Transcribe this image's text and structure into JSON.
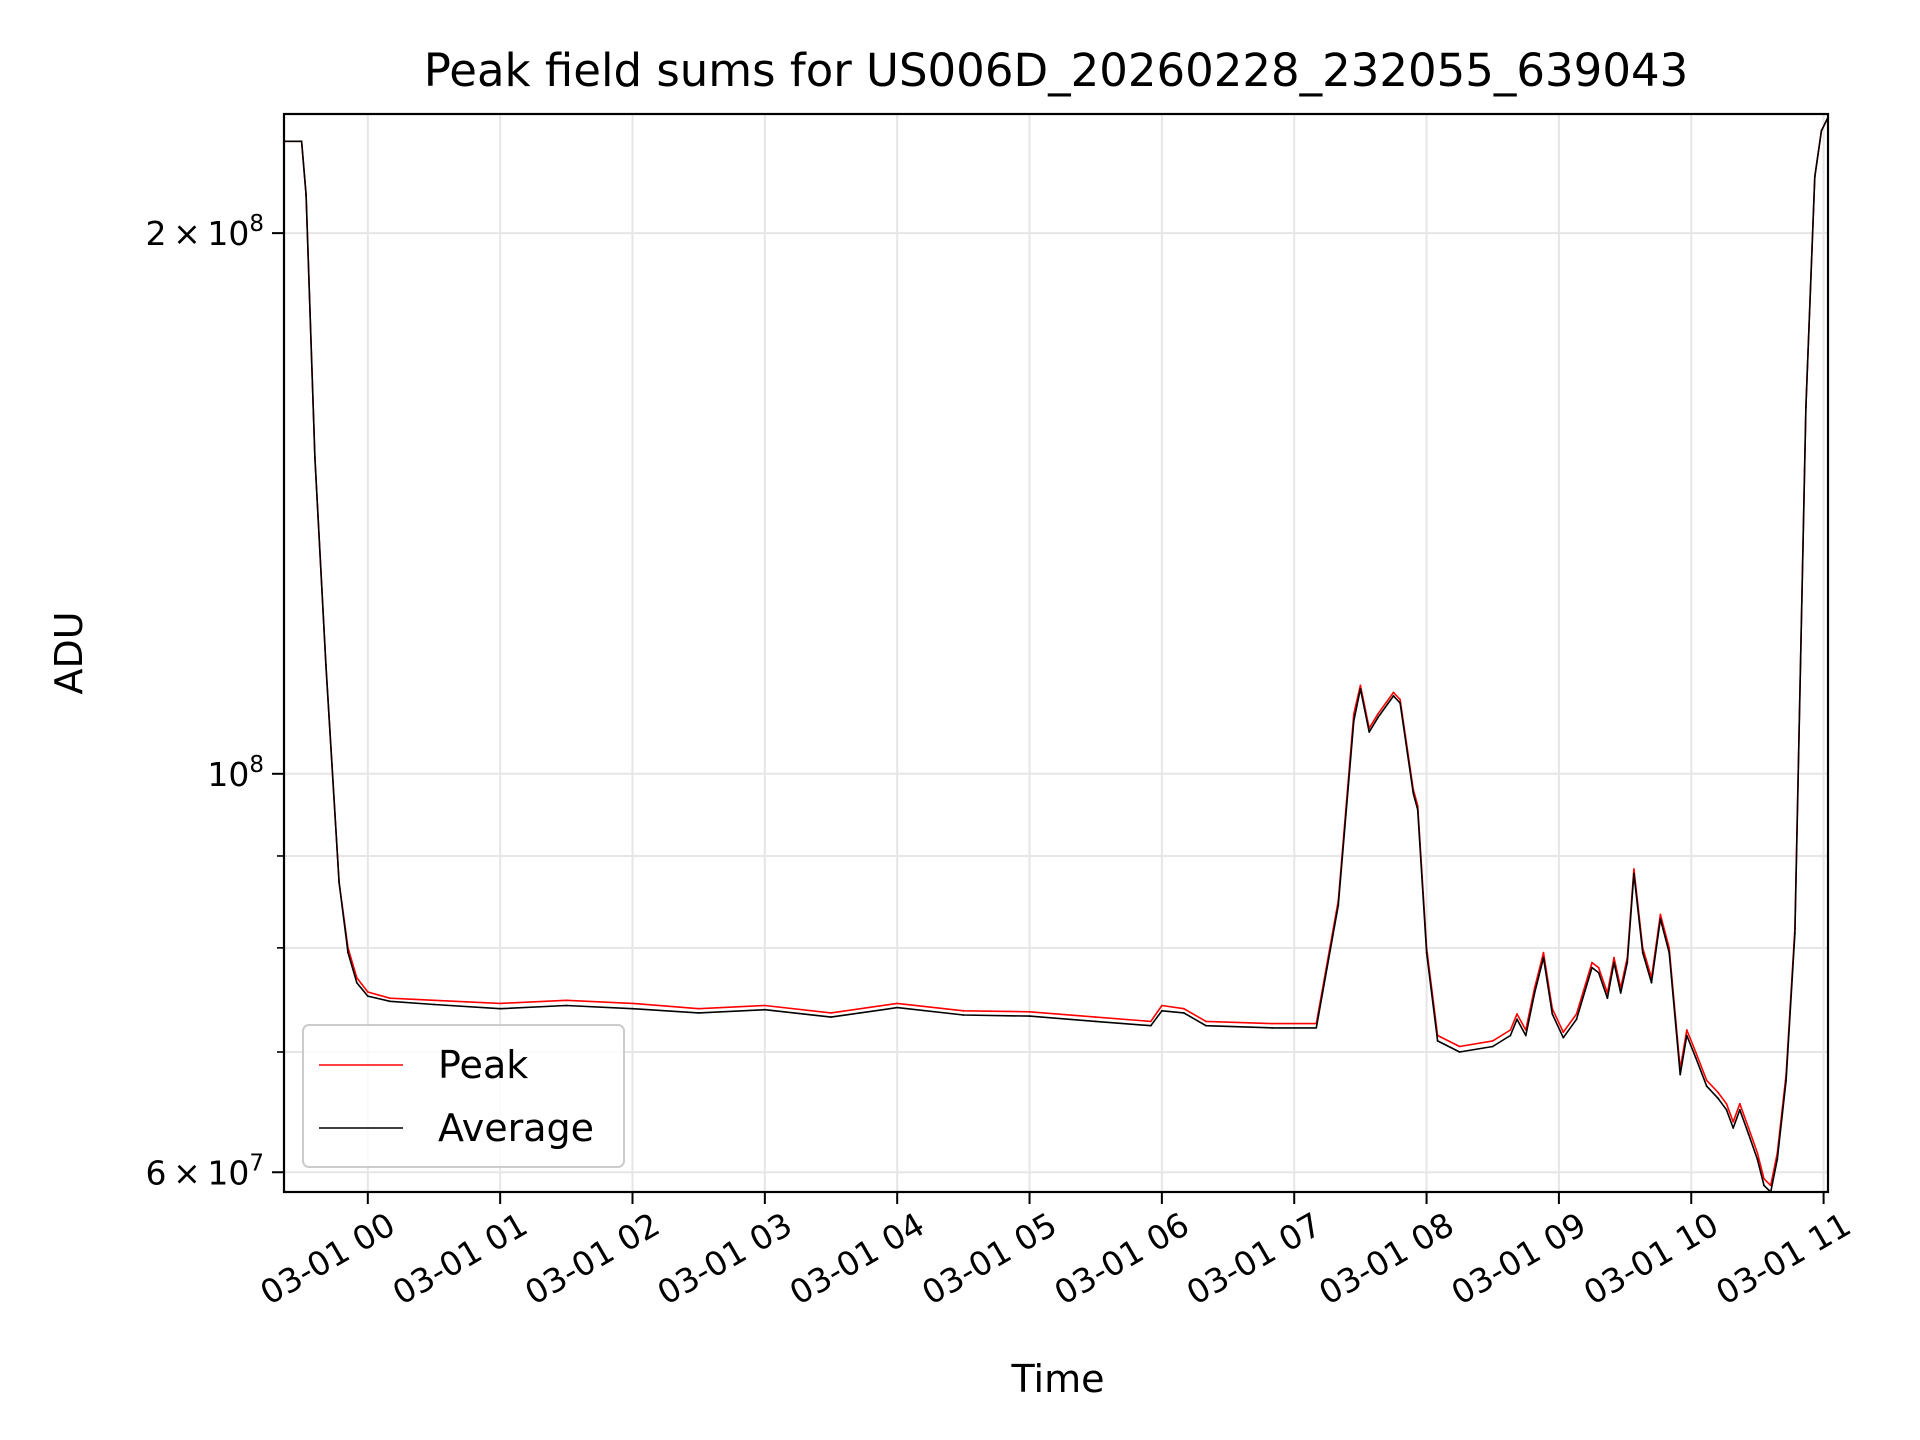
{
  "chart_data": {
    "type": "line",
    "title": "Peak field sums for US006D_20260228_232055_639043",
    "xlabel": "Time",
    "ylabel": "ADU",
    "y_scale": "log",
    "ylim": [
      58500000,
      233000000
    ],
    "x_range": [
      "02-28 23:22",
      "03-01 11:02"
    ],
    "grid": true,
    "legend_position": "lower-left",
    "x_ticks": [
      "03-01 00",
      "03-01 01",
      "03-01 02",
      "03-01 03",
      "03-01 04",
      "03-01 05",
      "03-01 06",
      "03-01 07",
      "03-01 08",
      "03-01 09",
      "03-01 10",
      "03-01 11"
    ],
    "y_tick_labels": [
      {
        "value": 60000000,
        "mantissa": "6",
        "exponent": "7"
      },
      {
        "value": 100000000,
        "mantissa": "",
        "exponent": "8"
      },
      {
        "value": 200000000,
        "mantissa": "2",
        "exponent": "8"
      }
    ],
    "y_minor_ticks": [
      70000000,
      80000000,
      90000000
    ],
    "colors": {
      "peak": "#ff0000",
      "average": "#000000",
      "grid": "#e6e6e6"
    },
    "series": [
      {
        "name": "Peak",
        "color": "#ff0000",
        "points": [
          [
            "02-28 23:22",
            225000000
          ],
          [
            "02-28 23:30",
            225000000
          ],
          [
            "02-28 23:32",
            210000000
          ],
          [
            "02-28 23:36",
            150000000
          ],
          [
            "02-28 23:41",
            115000000
          ],
          [
            "02-28 23:47",
            87000000
          ],
          [
            "02-28 23:51",
            80000000
          ],
          [
            "02-28 23:55",
            77000000
          ],
          [
            "03-01 00:00",
            75600000
          ],
          [
            "03-01 00:10",
            75000000
          ],
          [
            "03-01 00:30",
            74800000
          ],
          [
            "03-01 01:00",
            74500000
          ],
          [
            "03-01 01:30",
            74800000
          ],
          [
            "03-01 02:00",
            74500000
          ],
          [
            "03-01 02:30",
            74000000
          ],
          [
            "03-01 03:00",
            74300000
          ],
          [
            "03-01 03:30",
            73600000
          ],
          [
            "03-01 04:00",
            74500000
          ],
          [
            "03-01 04:30",
            73800000
          ],
          [
            "03-01 05:00",
            73700000
          ],
          [
            "03-01 05:30",
            73200000
          ],
          [
            "03-01 05:55",
            72800000
          ],
          [
            "03-01 06:00",
            74300000
          ],
          [
            "03-01 06:10",
            74000000
          ],
          [
            "03-01 06:20",
            72800000
          ],
          [
            "03-01 06:50",
            72600000
          ],
          [
            "03-01 07:10",
            72600000
          ],
          [
            "03-01 07:20",
            85000000
          ],
          [
            "03-01 07:27",
            108000000
          ],
          [
            "03-01 07:30",
            112000000
          ],
          [
            "03-01 07:34",
            106000000
          ],
          [
            "03-01 07:38",
            108000000
          ],
          [
            "03-01 07:45",
            111000000
          ],
          [
            "03-01 07:48",
            110000000
          ],
          [
            "03-01 07:54",
            98000000
          ],
          [
            "03-01 07:56",
            96000000
          ],
          [
            "03-01 08:00",
            80000000
          ],
          [
            "03-01 08:05",
            71500000
          ],
          [
            "03-01 08:15",
            70500000
          ],
          [
            "03-01 08:30",
            71000000
          ],
          [
            "03-01 08:38",
            72000000
          ],
          [
            "03-01 08:41",
            73500000
          ],
          [
            "03-01 08:45",
            72000000
          ],
          [
            "03-01 08:49",
            76000000
          ],
          [
            "03-01 08:53",
            79500000
          ],
          [
            "03-01 08:57",
            74000000
          ],
          [
            "03-01 09:02",
            71800000
          ],
          [
            "03-01 09:08",
            73500000
          ],
          [
            "03-01 09:15",
            78500000
          ],
          [
            "03-01 09:18",
            78000000
          ],
          [
            "03-01 09:22",
            75500000
          ],
          [
            "03-01 09:25",
            79000000
          ],
          [
            "03-01 09:28",
            76000000
          ],
          [
            "03-01 09:31",
            79000000
          ],
          [
            "03-01 09:34",
            88500000
          ],
          [
            "03-01 09:38",
            80000000
          ],
          [
            "03-01 09:42",
            77000000
          ],
          [
            "03-01 09:46",
            83500000
          ],
          [
            "03-01 09:50",
            80000000
          ],
          [
            "03-01 09:55",
            68500000
          ],
          [
            "03-01 09:58",
            72000000
          ],
          [
            "03-01 10:02",
            70000000
          ],
          [
            "03-01 10:07",
            67500000
          ],
          [
            "03-01 10:12",
            66500000
          ],
          [
            "03-01 10:16",
            65500000
          ],
          [
            "03-01 10:19",
            64000000
          ],
          [
            "03-01 10:22",
            65500000
          ],
          [
            "03-01 10:26",
            63500000
          ],
          [
            "03-01 10:30",
            61500000
          ],
          [
            "03-01 10:33",
            59500000
          ],
          [
            "03-01 10:36",
            59000000
          ],
          [
            "03-01 10:39",
            61500000
          ],
          [
            "03-01 10:43",
            68000000
          ],
          [
            "03-01 10:47",
            82000000
          ],
          [
            "03-01 10:52",
            160000000
          ],
          [
            "03-01 10:56",
            215000000
          ],
          [
            "03-01 10:59",
            228000000
          ],
          [
            "03-01 11:02",
            232000000
          ]
        ]
      },
      {
        "name": "Average",
        "color": "#000000",
        "points": [
          [
            "02-28 23:22",
            225000000
          ],
          [
            "02-28 23:30",
            225000000
          ],
          [
            "02-28 23:32",
            210000000
          ],
          [
            "02-28 23:36",
            150000000
          ],
          [
            "02-28 23:41",
            115000000
          ],
          [
            "02-28 23:47",
            87000000
          ],
          [
            "02-28 23:51",
            79500000
          ],
          [
            "02-28 23:55",
            76500000
          ],
          [
            "03-01 00:00",
            75200000
          ],
          [
            "03-01 00:10",
            74700000
          ],
          [
            "03-01 00:30",
            74400000
          ],
          [
            "03-01 01:00",
            74000000
          ],
          [
            "03-01 01:30",
            74300000
          ],
          [
            "03-01 02:00",
            74000000
          ],
          [
            "03-01 02:30",
            73600000
          ],
          [
            "03-01 03:00",
            73900000
          ],
          [
            "03-01 03:30",
            73200000
          ],
          [
            "03-01 04:00",
            74100000
          ],
          [
            "03-01 04:30",
            73400000
          ],
          [
            "03-01 05:00",
            73300000
          ],
          [
            "03-01 05:30",
            72800000
          ],
          [
            "03-01 05:55",
            72400000
          ],
          [
            "03-01 06:00",
            73800000
          ],
          [
            "03-01 06:10",
            73600000
          ],
          [
            "03-01 06:20",
            72400000
          ],
          [
            "03-01 06:50",
            72200000
          ],
          [
            "03-01 07:10",
            72200000
          ],
          [
            "03-01 07:20",
            84500000
          ],
          [
            "03-01 07:27",
            107000000
          ],
          [
            "03-01 07:30",
            111500000
          ],
          [
            "03-01 07:34",
            105500000
          ],
          [
            "03-01 07:38",
            107500000
          ],
          [
            "03-01 07:45",
            110500000
          ],
          [
            "03-01 07:48",
            109500000
          ],
          [
            "03-01 07:54",
            97500000
          ],
          [
            "03-01 07:56",
            95500000
          ],
          [
            "03-01 08:00",
            79500000
          ],
          [
            "03-01 08:05",
            71000000
          ],
          [
            "03-01 08:15",
            70000000
          ],
          [
            "03-01 08:30",
            70500000
          ],
          [
            "03-01 08:38",
            71500000
          ],
          [
            "03-01 08:41",
            73000000
          ],
          [
            "03-01 08:45",
            71500000
          ],
          [
            "03-01 08:49",
            75500000
          ],
          [
            "03-01 08:53",
            79000000
          ],
          [
            "03-01 08:57",
            73500000
          ],
          [
            "03-01 09:02",
            71300000
          ],
          [
            "03-01 09:08",
            73000000
          ],
          [
            "03-01 09:15",
            78000000
          ],
          [
            "03-01 09:18",
            77500000
          ],
          [
            "03-01 09:22",
            75000000
          ],
          [
            "03-01 09:25",
            78500000
          ],
          [
            "03-01 09:28",
            75500000
          ],
          [
            "03-01 09:31",
            78500000
          ],
          [
            "03-01 09:34",
            88000000
          ],
          [
            "03-01 09:38",
            79500000
          ],
          [
            "03-01 09:42",
            76500000
          ],
          [
            "03-01 09:46",
            83000000
          ],
          [
            "03-01 09:50",
            79500000
          ],
          [
            "03-01 09:55",
            68000000
          ],
          [
            "03-01 09:58",
            71500000
          ],
          [
            "03-01 10:02",
            69500000
          ],
          [
            "03-01 10:07",
            67000000
          ],
          [
            "03-01 10:12",
            66000000
          ],
          [
            "03-01 10:16",
            65000000
          ],
          [
            "03-01 10:19",
            63500000
          ],
          [
            "03-01 10:22",
            65000000
          ],
          [
            "03-01 10:26",
            63000000
          ],
          [
            "03-01 10:30",
            61000000
          ],
          [
            "03-01 10:33",
            59000000
          ],
          [
            "03-01 10:36",
            58500000
          ],
          [
            "03-01 10:39",
            61000000
          ],
          [
            "03-01 10:43",
            67500000
          ],
          [
            "03-01 10:47",
            81500000
          ],
          [
            "03-01 10:52",
            160000000
          ],
          [
            "03-01 10:56",
            215000000
          ],
          [
            "03-01 10:59",
            228000000
          ],
          [
            "03-01 11:02",
            232000000
          ]
        ]
      }
    ]
  }
}
